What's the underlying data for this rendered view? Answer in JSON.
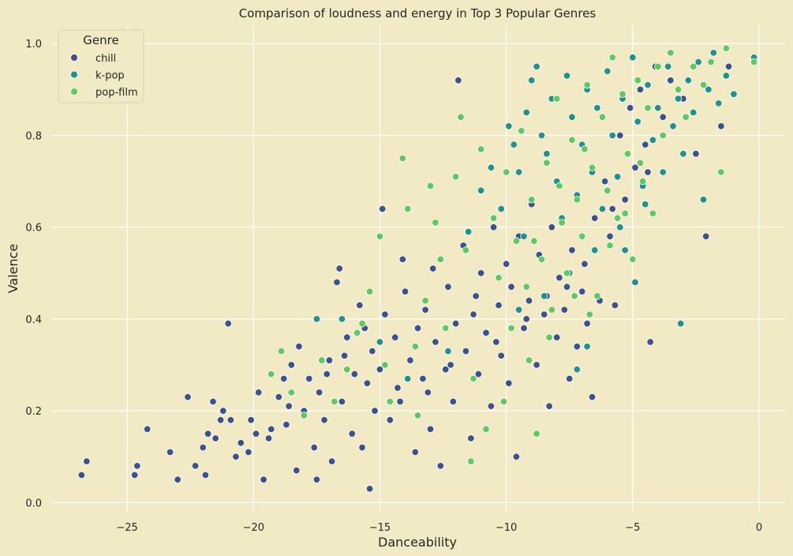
{
  "chart_data": {
    "type": "scatter",
    "title": "Comparison of loudness and energy in Top 3 Popular Genres",
    "xlabel": "Danceability",
    "ylabel": "Valence",
    "xlim": [
      -28,
      1
    ],
    "ylim": [
      -0.02,
      1.04
    ],
    "xticks": [
      -25,
      -20,
      -15,
      -10,
      -5,
      0
    ],
    "yticks": [
      0.0,
      0.2,
      0.4,
      0.6,
      0.8,
      1.0
    ],
    "xtick_labels": [
      "−25",
      "−20",
      "−15",
      "−10",
      "−5",
      "0"
    ],
    "ytick_labels": [
      "0.0",
      "0.2",
      "0.4",
      "0.6",
      "0.8",
      "1.0"
    ],
    "grid": true,
    "legend": {
      "title": "Genre",
      "position": "top-left"
    },
    "series": [
      {
        "name": "chill",
        "color": "#3b528b",
        "points": [
          [
            -26.8,
            0.06
          ],
          [
            -26.6,
            0.09
          ],
          [
            -24.7,
            0.06
          ],
          [
            -24.6,
            0.08
          ],
          [
            -24.2,
            0.16
          ],
          [
            -23.3,
            0.11
          ],
          [
            -23.0,
            0.05
          ],
          [
            -22.6,
            0.23
          ],
          [
            -22.3,
            0.08
          ],
          [
            -21.9,
            0.06
          ],
          [
            -21.8,
            0.15
          ],
          [
            -21.6,
            0.22
          ],
          [
            -21.5,
            0.14
          ],
          [
            -21.2,
            0.2
          ],
          [
            -21.0,
            0.39
          ],
          [
            -20.9,
            0.18
          ],
          [
            -20.7,
            0.1
          ],
          [
            -20.2,
            0.11
          ],
          [
            -20.1,
            0.18
          ],
          [
            -19.8,
            0.24
          ],
          [
            -19.6,
            0.05
          ],
          [
            -19.4,
            0.14
          ],
          [
            -19.3,
            0.16
          ],
          [
            -19.0,
            0.23
          ],
          [
            -18.8,
            0.27
          ],
          [
            -18.6,
            0.21
          ],
          [
            -18.5,
            0.3
          ],
          [
            -18.3,
            0.07
          ],
          [
            -18.2,
            0.34
          ],
          [
            -18.0,
            0.2
          ],
          [
            -17.8,
            0.27
          ],
          [
            -17.6,
            0.12
          ],
          [
            -17.5,
            0.05
          ],
          [
            -17.4,
            0.24
          ],
          [
            -17.2,
            0.18
          ],
          [
            -17.0,
            0.31
          ],
          [
            -16.9,
            0.09
          ],
          [
            -16.7,
            0.48
          ],
          [
            -16.6,
            0.51
          ],
          [
            -16.5,
            0.22
          ],
          [
            -16.3,
            0.36
          ],
          [
            -16.1,
            0.15
          ],
          [
            -16.0,
            0.28
          ],
          [
            -15.8,
            0.43
          ],
          [
            -15.7,
            0.12
          ],
          [
            -15.6,
            0.38
          ],
          [
            -15.4,
            0.03
          ],
          [
            -15.3,
            0.33
          ],
          [
            -15.2,
            0.2
          ],
          [
            -15.0,
            0.29
          ],
          [
            -14.9,
            0.64
          ],
          [
            -14.8,
            0.41
          ],
          [
            -14.6,
            0.18
          ],
          [
            -14.4,
            0.36
          ],
          [
            -14.3,
            0.25
          ],
          [
            -14.1,
            0.53
          ],
          [
            -14.0,
            0.46
          ],
          [
            -13.8,
            0.31
          ],
          [
            -13.6,
            0.11
          ],
          [
            -13.5,
            0.38
          ],
          [
            -13.3,
            0.27
          ],
          [
            -13.2,
            0.42
          ],
          [
            -13.0,
            0.16
          ],
          [
            -12.9,
            0.51
          ],
          [
            -12.8,
            0.35
          ],
          [
            -12.6,
            0.08
          ],
          [
            -12.4,
            0.29
          ],
          [
            -12.3,
            0.47
          ],
          [
            -12.1,
            0.22
          ],
          [
            -12.0,
            0.39
          ],
          [
            -11.9,
            0.92
          ],
          [
            -11.7,
            0.56
          ],
          [
            -11.6,
            0.33
          ],
          [
            -11.4,
            0.14
          ],
          [
            -11.2,
            0.45
          ],
          [
            -11.1,
            0.28
          ],
          [
            -11.0,
            0.5
          ],
          [
            -10.8,
            0.37
          ],
          [
            -10.6,
            0.21
          ],
          [
            -10.5,
            0.6
          ],
          [
            -10.3,
            0.43
          ],
          [
            -10.2,
            0.32
          ],
          [
            -10.0,
            0.52
          ],
          [
            -9.9,
            0.26
          ],
          [
            -9.8,
            0.47
          ],
          [
            -9.6,
            0.1
          ],
          [
            -9.5,
            0.58
          ],
          [
            -9.3,
            0.38
          ],
          [
            -9.1,
            0.44
          ],
          [
            -9.0,
            0.65
          ],
          [
            -8.8,
            0.3
          ],
          [
            -8.7,
            0.54
          ],
          [
            -8.5,
            0.41
          ],
          [
            -8.3,
            0.21
          ],
          [
            -8.2,
            0.6
          ],
          [
            -8.0,
            0.36
          ],
          [
            -7.9,
            0.49
          ],
          [
            -7.7,
            0.42
          ],
          [
            -7.5,
            0.27
          ],
          [
            -7.4,
            0.55
          ],
          [
            -7.2,
            0.34
          ],
          [
            -7.0,
            0.46
          ],
          [
            -6.8,
            0.39
          ],
          [
            -6.6,
            0.23
          ],
          [
            -6.5,
            0.62
          ],
          [
            -6.3,
            0.44
          ],
          [
            -6.1,
            0.7
          ],
          [
            -5.9,
            0.58
          ],
          [
            -5.7,
            0.43
          ],
          [
            -5.5,
            0.8
          ],
          [
            -5.3,
            0.66
          ],
          [
            -5.1,
            0.86
          ],
          [
            -4.9,
            0.73
          ],
          [
            -4.7,
            0.9
          ],
          [
            -4.5,
            0.78
          ],
          [
            -4.3,
            0.35
          ],
          [
            -4.1,
            0.95
          ],
          [
            -3.8,
            0.84
          ],
          [
            -3.5,
            0.92
          ],
          [
            -3.0,
            0.88
          ],
          [
            -2.5,
            0.76
          ],
          [
            -2.1,
            0.58
          ],
          [
            -1.5,
            0.82
          ],
          [
            -1.2,
            0.95
          ],
          [
            -4.4,
            0.72
          ],
          [
            -5.8,
            0.64
          ],
          [
            -6.9,
            0.52
          ],
          [
            -7.6,
            0.47
          ],
          [
            -8.4,
            0.45
          ],
          [
            -9.2,
            0.4
          ],
          [
            -10.4,
            0.35
          ],
          [
            -11.3,
            0.41
          ],
          [
            -12.2,
            0.3
          ],
          [
            -13.1,
            0.24
          ],
          [
            -14.2,
            0.22
          ],
          [
            -15.5,
            0.26
          ],
          [
            -16.4,
            0.32
          ],
          [
            -17.1,
            0.28
          ],
          [
            -18.7,
            0.17
          ],
          [
            -19.9,
            0.15
          ],
          [
            -20.5,
            0.13
          ],
          [
            -21.3,
            0.18
          ],
          [
            -22.0,
            0.12
          ]
        ]
      },
      {
        "name": "k-pop",
        "color": "#21918c",
        "points": [
          [
            -17.5,
            0.4
          ],
          [
            -16.5,
            0.4
          ],
          [
            -15.0,
            0.35
          ],
          [
            -13.9,
            0.27
          ],
          [
            -12.3,
            0.33
          ],
          [
            -11.5,
            0.59
          ],
          [
            -11.0,
            0.68
          ],
          [
            -10.6,
            0.73
          ],
          [
            -10.2,
            0.64
          ],
          [
            -9.9,
            0.82
          ],
          [
            -9.7,
            0.78
          ],
          [
            -9.5,
            0.72
          ],
          [
            -9.3,
            0.58
          ],
          [
            -9.2,
            0.85
          ],
          [
            -9.0,
            0.92
          ],
          [
            -8.8,
            0.95
          ],
          [
            -8.6,
            0.8
          ],
          [
            -8.4,
            0.76
          ],
          [
            -8.2,
            0.88
          ],
          [
            -8.0,
            0.7
          ],
          [
            -7.8,
            0.62
          ],
          [
            -7.6,
            0.93
          ],
          [
            -7.4,
            0.84
          ],
          [
            -7.2,
            0.67
          ],
          [
            -7.0,
            0.78
          ],
          [
            -6.8,
            0.9
          ],
          [
            -6.6,
            0.72
          ],
          [
            -6.4,
            0.86
          ],
          [
            -6.2,
            0.64
          ],
          [
            -6.0,
            0.94
          ],
          [
            -5.8,
            0.8
          ],
          [
            -5.6,
            0.71
          ],
          [
            -5.4,
            0.88
          ],
          [
            -5.2,
            0.76
          ],
          [
            -5.0,
            0.97
          ],
          [
            -4.8,
            0.83
          ],
          [
            -4.6,
            0.69
          ],
          [
            -4.4,
            0.91
          ],
          [
            -4.2,
            0.79
          ],
          [
            -4.0,
            0.86
          ],
          [
            -3.8,
            0.72
          ],
          [
            -3.6,
            0.95
          ],
          [
            -3.4,
            0.82
          ],
          [
            -3.2,
            0.88
          ],
          [
            -3.1,
            0.39
          ],
          [
            -3.0,
            0.76
          ],
          [
            -2.8,
            0.92
          ],
          [
            -2.6,
            0.85
          ],
          [
            -2.4,
            0.96
          ],
          [
            -2.2,
            0.66
          ],
          [
            -2.0,
            0.9
          ],
          [
            -1.8,
            0.98
          ],
          [
            -1.6,
            0.87
          ],
          [
            -1.3,
            0.93
          ],
          [
            -1.0,
            0.89
          ],
          [
            -0.2,
            0.97
          ],
          [
            -7.5,
            0.5
          ],
          [
            -6.5,
            0.55
          ],
          [
            -5.5,
            0.6
          ],
          [
            -4.5,
            0.65
          ],
          [
            -8.5,
            0.45
          ],
          [
            -9.5,
            0.42
          ],
          [
            -6.8,
            0.34
          ],
          [
            -7.2,
            0.29
          ],
          [
            -5.3,
            0.55
          ],
          [
            -4.9,
            0.48
          ]
        ]
      },
      {
        "name": "pop-film",
        "color": "#5ec962",
        "points": [
          [
            -19.3,
            0.28
          ],
          [
            -18.9,
            0.33
          ],
          [
            -18.5,
            0.24
          ],
          [
            -18.0,
            0.19
          ],
          [
            -17.3,
            0.31
          ],
          [
            -16.8,
            0.22
          ],
          [
            -16.3,
            0.29
          ],
          [
            -15.9,
            0.37
          ],
          [
            -15.4,
            0.46
          ],
          [
            -15.0,
            0.58
          ],
          [
            -14.6,
            0.22
          ],
          [
            -14.1,
            0.75
          ],
          [
            -13.9,
            0.64
          ],
          [
            -13.5,
            0.19
          ],
          [
            -13.2,
            0.44
          ],
          [
            -13.0,
            0.69
          ],
          [
            -12.8,
            0.61
          ],
          [
            -12.4,
            0.38
          ],
          [
            -12.0,
            0.71
          ],
          [
            -11.8,
            0.84
          ],
          [
            -11.6,
            0.55
          ],
          [
            -11.3,
            0.27
          ],
          [
            -11.0,
            0.77
          ],
          [
            -10.8,
            0.16
          ],
          [
            -10.5,
            0.62
          ],
          [
            -10.3,
            0.49
          ],
          [
            -10.0,
            0.72
          ],
          [
            -9.8,
            0.38
          ],
          [
            -9.6,
            0.57
          ],
          [
            -9.4,
            0.81
          ],
          [
            -9.2,
            0.47
          ],
          [
            -9.0,
            0.66
          ],
          [
            -8.8,
            0.15
          ],
          [
            -8.6,
            0.53
          ],
          [
            -8.4,
            0.74
          ],
          [
            -8.2,
            0.42
          ],
          [
            -8.0,
            0.88
          ],
          [
            -7.8,
            0.61
          ],
          [
            -7.6,
            0.5
          ],
          [
            -7.4,
            0.79
          ],
          [
            -7.2,
            0.66
          ],
          [
            -7.0,
            0.58
          ],
          [
            -6.8,
            0.91
          ],
          [
            -6.6,
            0.73
          ],
          [
            -6.4,
            0.45
          ],
          [
            -6.2,
            0.84
          ],
          [
            -6.0,
            0.68
          ],
          [
            -5.8,
            0.97
          ],
          [
            -5.6,
            0.62
          ],
          [
            -5.4,
            0.89
          ],
          [
            -5.2,
            0.76
          ],
          [
            -5.0,
            0.53
          ],
          [
            -4.8,
            0.92
          ],
          [
            -4.6,
            0.7
          ],
          [
            -4.4,
            0.86
          ],
          [
            -4.2,
            0.63
          ],
          [
            -4.0,
            0.95
          ],
          [
            -3.8,
            0.8
          ],
          [
            -3.5,
            0.98
          ],
          [
            -3.2,
            0.9
          ],
          [
            -2.9,
            0.84
          ],
          [
            -2.6,
            0.95
          ],
          [
            -2.2,
            0.91
          ],
          [
            -1.9,
            0.96
          ],
          [
            -1.5,
            0.72
          ],
          [
            -1.3,
            0.99
          ],
          [
            -0.2,
            0.96
          ],
          [
            -11.4,
            0.09
          ],
          [
            -10.1,
            0.22
          ],
          [
            -9.1,
            0.31
          ],
          [
            -8.3,
            0.36
          ],
          [
            -7.3,
            0.45
          ],
          [
            -6.7,
            0.41
          ],
          [
            -5.9,
            0.56
          ],
          [
            -5.3,
            0.63
          ],
          [
            -4.7,
            0.74
          ],
          [
            -8.9,
            0.57
          ],
          [
            -7.9,
            0.69
          ],
          [
            -6.9,
            0.77
          ],
          [
            -12.6,
            0.53
          ],
          [
            -13.6,
            0.34
          ],
          [
            -14.8,
            0.3
          ],
          [
            -15.7,
            0.39
          ]
        ]
      }
    ]
  }
}
